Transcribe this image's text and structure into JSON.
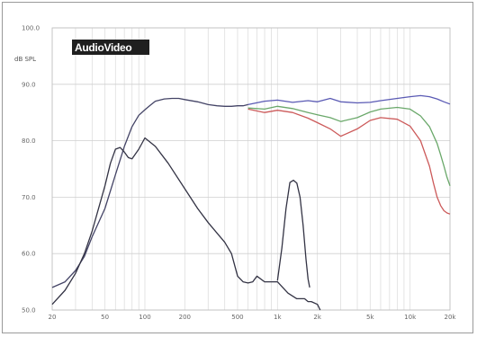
{
  "chart_data": {
    "type": "line",
    "title": "",
    "xlabel": "",
    "ylabel": "",
    "ylabel_unit": "dB SPL",
    "x_scale": "log",
    "xlim": [
      20,
      20000
    ],
    "ylim": [
      50,
      100
    ],
    "grid": true,
    "legend": "none",
    "logo": "AudioVideo",
    "y_ticks": [
      {
        "value": 100,
        "label": "100.0"
      },
      {
        "value": 90,
        "label": "90.0"
      },
      {
        "value": 80,
        "label": "80.0"
      },
      {
        "value": 70,
        "label": "70.0"
      },
      {
        "value": 60,
        "label": "60.0"
      },
      {
        "value": 50,
        "label": "50.0"
      }
    ],
    "x_ticks": [
      {
        "value": 20,
        "label": "20"
      },
      {
        "value": 50,
        "label": "50"
      },
      {
        "value": 100,
        "label": "100"
      },
      {
        "value": 200,
        "label": "200"
      },
      {
        "value": 500,
        "label": "500"
      },
      {
        "value": 1000,
        "label": "1k"
      },
      {
        "value": 2000,
        "label": "2k"
      },
      {
        "value": 5000,
        "label": "5k"
      },
      {
        "value": 10000,
        "label": "10k"
      },
      {
        "value": 20000,
        "label": "20k"
      }
    ],
    "series": [
      {
        "color": "#5a5ab4",
        "x": [
          600,
          800,
          1000,
          1300,
          1700,
          2000,
          2500,
          3000,
          4000,
          5000,
          6000,
          8000,
          10000,
          12000,
          14000,
          16000,
          18000,
          20000
        ],
        "values": [
          86.4,
          87.0,
          87.2,
          86.8,
          87.1,
          86.9,
          87.5,
          86.9,
          86.7,
          86.8,
          87.1,
          87.5,
          87.8,
          88.0,
          87.8,
          87.4,
          86.9,
          86.5
        ]
      },
      {
        "color": "#6aa86a",
        "x": [
          600,
          800,
          1000,
          1300,
          1700,
          2000,
          2500,
          3000,
          4000,
          5000,
          6000,
          8000,
          10000,
          12000,
          14000,
          16000,
          17000,
          18000,
          19000,
          20000
        ],
        "values": [
          85.8,
          85.6,
          86.1,
          85.7,
          85.0,
          84.6,
          84.1,
          83.4,
          84.1,
          85.1,
          85.6,
          85.9,
          85.6,
          84.4,
          82.5,
          79.5,
          77.5,
          75.5,
          73.5,
          72.0
        ]
      },
      {
        "color": "#cc5a5a",
        "x": [
          600,
          800,
          1000,
          1300,
          1700,
          2000,
          2500,
          3000,
          4000,
          5000,
          6000,
          8000,
          10000,
          12000,
          14000,
          15000,
          16000,
          17000,
          18000,
          19000,
          20000
        ],
        "values": [
          85.6,
          85.0,
          85.4,
          85.0,
          84.0,
          83.2,
          82.1,
          80.8,
          82.1,
          83.6,
          84.1,
          83.8,
          82.6,
          80.0,
          75.5,
          72.5,
          70.0,
          68.5,
          67.6,
          67.2,
          67.0
        ]
      },
      {
        "color": "#444466",
        "x": [
          20,
          25,
          30,
          35,
          40,
          50,
          60,
          70,
          80,
          90,
          100,
          110,
          120,
          140,
          160,
          180,
          200,
          250,
          300,
          350,
          400,
          450,
          500,
          550,
          600
        ],
        "values": [
          54.0,
          55.0,
          57.0,
          59.5,
          63.0,
          68.0,
          74.0,
          79.0,
          82.5,
          84.5,
          85.5,
          86.3,
          87.0,
          87.4,
          87.5,
          87.5,
          87.3,
          86.9,
          86.4,
          86.2,
          86.1,
          86.1,
          86.2,
          86.2,
          86.4
        ]
      },
      {
        "color": "#333344",
        "x": [
          20,
          25,
          30,
          35,
          40,
          50,
          55,
          60,
          65,
          70,
          75,
          80,
          90,
          100,
          120,
          150,
          200,
          250,
          300,
          400,
          450,
          500,
          550,
          600,
          650,
          700,
          800,
          1000,
          1200,
          1400,
          1600,
          1700,
          1800,
          2000,
          2100
        ],
        "values": [
          51.0,
          53.5,
          56.5,
          60.0,
          64.0,
          72.0,
          76.0,
          78.5,
          78.8,
          78.0,
          77.0,
          76.8,
          78.5,
          80.5,
          79.0,
          76.0,
          71.5,
          68.0,
          65.5,
          62.0,
          60.0,
          56.0,
          55.0,
          54.8,
          55.0,
          56.0,
          55.0,
          55.0,
          53.0,
          52.0,
          52.0,
          51.5,
          51.5,
          51.0,
          50.0
        ]
      },
      {
        "color": "#333344",
        "x": [
          1000,
          1080,
          1160,
          1240,
          1320,
          1400,
          1480,
          1560,
          1640,
          1700,
          1750
        ],
        "values": [
          55.2,
          61.0,
          68.0,
          72.6,
          73.0,
          72.5,
          70.0,
          65.0,
          59.0,
          55.5,
          54.0
        ]
      }
    ]
  }
}
